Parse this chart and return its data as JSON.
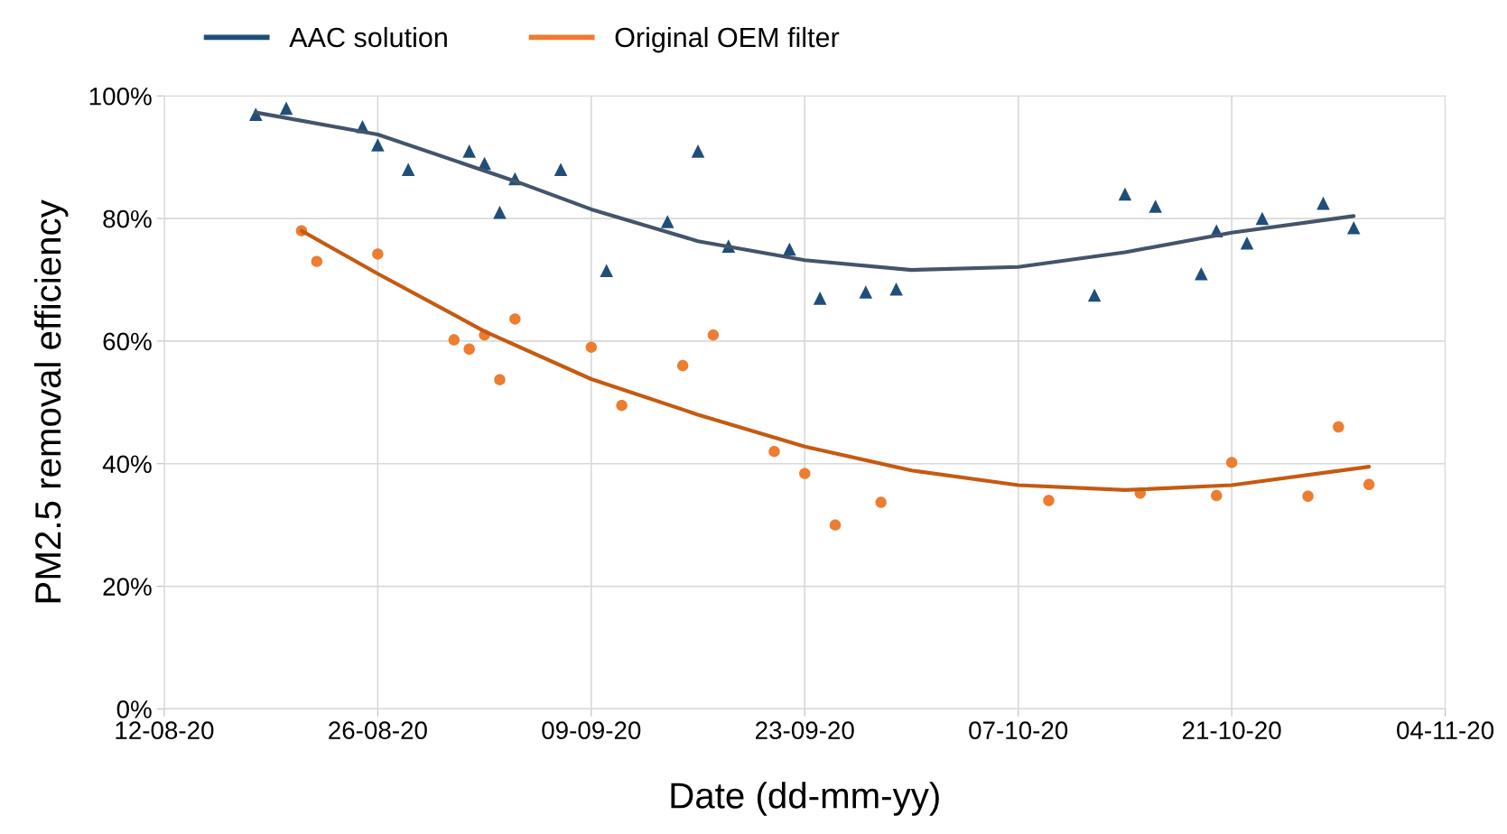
{
  "chart_data": {
    "type": "scatter",
    "xlabel": "Date (dd-mm-yy)",
    "ylabel": "PM2.5 removal efficiency",
    "xlim": [
      "2020-08-12",
      "2020-11-04"
    ],
    "xticks": [
      {
        "value": "2020-08-12",
        "label": "12-08-20"
      },
      {
        "value": "2020-08-26",
        "label": "26-08-20"
      },
      {
        "value": "2020-09-09",
        "label": "09-09-20"
      },
      {
        "value": "2020-09-23",
        "label": "23-09-20"
      },
      {
        "value": "2020-10-07",
        "label": "07-10-20"
      },
      {
        "value": "2020-10-21",
        "label": "21-10-20"
      },
      {
        "value": "2020-11-04",
        "label": "04-11-20"
      }
    ],
    "ylim": [
      0,
      100
    ],
    "yticks": [
      {
        "value": 0,
        "label": "0%"
      },
      {
        "value": 20,
        "label": "20%"
      },
      {
        "value": 40,
        "label": "40%"
      },
      {
        "value": 60,
        "label": "60%"
      },
      {
        "value": 80,
        "label": "80%"
      },
      {
        "value": 100,
        "label": "100%"
      }
    ],
    "grid": true,
    "legend": "top",
    "series": [
      {
        "name": "AAC solution",
        "marker": "triangle",
        "color": "#1f4e79",
        "x": [
          "2020-08-18",
          "2020-08-20",
          "2020-08-25",
          "2020-08-26",
          "2020-08-28",
          "2020-09-01",
          "2020-09-02",
          "2020-09-03",
          "2020-09-04",
          "2020-09-07",
          "2020-09-10",
          "2020-09-14",
          "2020-09-16",
          "2020-09-18",
          "2020-09-22",
          "2020-09-24",
          "2020-09-27",
          "2020-09-29",
          "2020-10-12",
          "2020-10-14",
          "2020-10-16",
          "2020-10-19",
          "2020-10-20",
          "2020-10-22",
          "2020-10-23",
          "2020-10-27",
          "2020-10-29"
        ],
        "values": [
          97,
          98,
          95,
          92,
          88,
          91,
          89,
          81,
          86.5,
          88,
          71.5,
          79.5,
          91,
          75.5,
          75,
          67,
          68,
          68.5,
          67.5,
          84,
          82,
          71,
          78,
          76,
          80,
          82.5,
          78.5
        ]
      },
      {
        "name": "Original OEM filter",
        "marker": "circle",
        "color": "#ed7d31",
        "x": [
          "2020-08-21",
          "2020-08-22",
          "2020-08-26",
          "2020-08-31",
          "2020-09-01",
          "2020-09-02",
          "2020-09-03",
          "2020-09-04",
          "2020-09-09",
          "2020-09-11",
          "2020-09-15",
          "2020-09-17",
          "2020-09-21",
          "2020-09-23",
          "2020-09-25",
          "2020-09-28",
          "2020-10-09",
          "2020-10-15",
          "2020-10-20",
          "2020-10-21",
          "2020-10-26",
          "2020-10-28",
          "2020-10-30"
        ],
        "values": [
          78,
          73,
          74.2,
          60.2,
          58.7,
          61,
          53.7,
          63.6,
          59,
          49.5,
          56,
          61,
          42,
          38.4,
          30,
          33.7,
          34,
          35.2,
          34.8,
          40.2,
          34.7,
          46,
          36.6
        ]
      },
      {
        "type": "line",
        "marker": "none",
        "color": "#44546a",
        "x": [
          "2020-08-18",
          "2020-08-26",
          "2020-09-04",
          "2020-09-09",
          "2020-09-16",
          "2020-09-23",
          "2020-09-30",
          "2020-10-07",
          "2020-10-14",
          "2020-10-21",
          "2020-10-29"
        ],
        "values": [
          97.3,
          93.7,
          86.1,
          81.5,
          76.3,
          73.2,
          71.6,
          72.1,
          74.5,
          77.7,
          80.4
        ]
      },
      {
        "type": "line",
        "marker": "none",
        "color": "#c55a11",
        "x": [
          "2020-08-21",
          "2020-08-26",
          "2020-09-02",
          "2020-09-09",
          "2020-09-16",
          "2020-09-23",
          "2020-09-30",
          "2020-10-07",
          "2020-10-14",
          "2020-10-21",
          "2020-10-30"
        ],
        "values": [
          78,
          71,
          61.6,
          53.8,
          48,
          42.8,
          38.9,
          36.5,
          35.7,
          36.5,
          39.5
        ]
      }
    ]
  }
}
